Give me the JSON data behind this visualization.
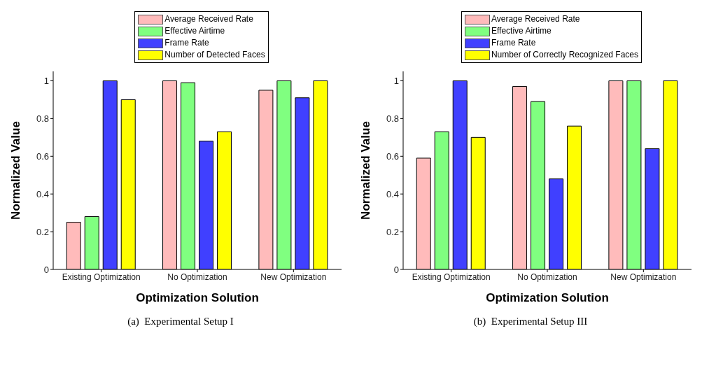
{
  "chart_data": [
    {
      "type": "bar",
      "categories": [
        "Existing Optimization",
        "No Optimization",
        "New Optimization"
      ],
      "xlabel": "Optimization Solution",
      "ylabel": "Normalized Value",
      "series": [
        {
          "name": "Average Received Rate",
          "color": "#ffbbbb",
          "values": [
            0.25,
            1,
            0.95
          ]
        },
        {
          "name": "Effective Airtime",
          "color": "#80ff80",
          "values": [
            0.28,
            0.99,
            1
          ]
        },
        {
          "name": "Frame Rate",
          "color": "#4040ff",
          "values": [
            1,
            0.68,
            0.91
          ]
        },
        {
          "name": "Number of Detected Faces",
          "color": "#ffff00",
          "values": [
            0.9,
            0.73,
            1
          ]
        }
      ],
      "ylim": [
        0,
        1.05
      ],
      "yticks": [
        0,
        0.2,
        0.4,
        0.6,
        0.8,
        1
      ],
      "grid": false,
      "legend": "top",
      "annotations": [
        "(a)  Experimental Setup I"
      ]
    },
    {
      "type": "bar",
      "categories": [
        "Existing Optimization",
        "No Optimization",
        "New Optimization"
      ],
      "xlabel": "Optimization Solution",
      "ylabel": "Normalized Value",
      "series": [
        {
          "name": "Average Received Rate",
          "color": "#ffbbbb",
          "values": [
            0.59,
            0.97,
            1
          ]
        },
        {
          "name": "Effective Airtime",
          "color": "#80ff80",
          "values": [
            0.73,
            0.89,
            1
          ]
        },
        {
          "name": "Frame Rate",
          "color": "#4040ff",
          "values": [
            1,
            0.48,
            0.64
          ]
        },
        {
          "name": "Number of Correctly Recognized Faces",
          "color": "#ffff00",
          "values": [
            0.7,
            0.76,
            1
          ]
        }
      ],
      "ylim": [
        0,
        1.05
      ],
      "yticks": [
        0,
        0.2,
        0.4,
        0.6,
        0.8,
        1
      ],
      "grid": false,
      "legend": "top",
      "annotations": [
        "(b)  Experimental Setup III"
      ]
    }
  ]
}
